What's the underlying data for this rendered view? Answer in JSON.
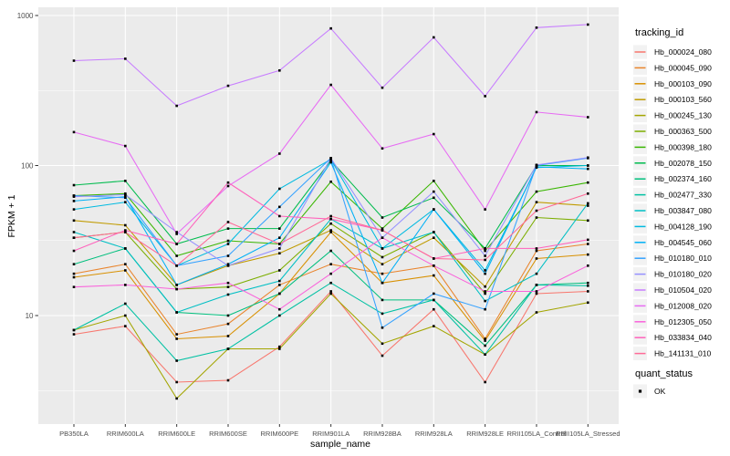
{
  "figure": {
    "bg": "#FFFFFF",
    "panel_bg": "#EBEBEB",
    "grid_color": "#FFFFFF",
    "tick_color": "#333333",
    "tick_label_color": "#4D4D4D",
    "point_color": "#000000",
    "legend_key_bg": "#F2F2F2"
  },
  "chart_data": {
    "type": "line",
    "title": "",
    "xlabel": "sample_name",
    "ylabel": "FPKM + 1",
    "y_scale": "log10",
    "y_ticks": [
      10,
      100,
      1000
    ],
    "y_minor_ticks": [
      3.1623,
      31.623,
      316.23
    ],
    "ylim": [
      1.9,
      1100
    ],
    "grid": true,
    "legend_position": "right",
    "categories": [
      "PB350LA",
      "RRIM600LA",
      "RRIM600LE",
      "RRIM600SE",
      "RRIM600PE",
      "RRIM901LA",
      "RRIM928BA",
      "RRIM928LA",
      "RRIM928LE",
      "RRII105LA_Control",
      "RRII105LA_Stressed"
    ],
    "series": [
      {
        "name": "Hb_000024_080",
        "color": "#F8766D",
        "values": [
          7.5,
          8.5,
          3.6,
          3.7,
          6.2,
          14.5,
          5.4,
          11,
          3.6,
          14,
          14.5
        ]
      },
      {
        "name": "Hb_000045_090",
        "color": "#E9842C",
        "values": [
          19,
          22,
          7.5,
          8.8,
          16,
          22,
          19,
          21.5,
          7,
          27,
          30
        ]
      },
      {
        "name": "Hb_000103_090",
        "color": "#D89000",
        "values": [
          18,
          20,
          7,
          7.3,
          14,
          36,
          16.5,
          18.5,
          6.8,
          24,
          25.5
        ]
      },
      {
        "name": "Hb_000103_560",
        "color": "#C09B00",
        "values": [
          43,
          40,
          16,
          21.5,
          26,
          37,
          22,
          33,
          15.6,
          57,
          54
        ]
      },
      {
        "name": "Hb_000245_130",
        "color": "#A3A500",
        "values": [
          8,
          10,
          2.8,
          6,
          6,
          14,
          6.5,
          8.5,
          5.5,
          10.5,
          12.2
        ]
      },
      {
        "name": "Hb_000363_500",
        "color": "#7CAE00",
        "values": [
          33,
          36,
          15,
          15.5,
          20,
          41,
          24.5,
          36,
          14,
          45,
          43
        ]
      },
      {
        "name": "Hb_000398_180",
        "color": "#39B600",
        "values": [
          63,
          65,
          25,
          31.5,
          30,
          78,
          38,
          79,
          27,
          67,
          77
        ]
      },
      {
        "name": "Hb_002078_150",
        "color": "#00BB4E",
        "values": [
          74,
          79,
          30,
          38,
          38,
          108,
          45,
          61,
          28,
          100,
          100
        ]
      },
      {
        "name": "Hb_002374_160",
        "color": "#00BF7D",
        "values": [
          22,
          28,
          10.5,
          10,
          14,
          27,
          12.7,
          12.7,
          6.3,
          16,
          16.5
        ]
      },
      {
        "name": "Hb_002477_330",
        "color": "#00C1A3",
        "values": [
          8,
          12,
          5,
          6,
          10,
          16.5,
          10.3,
          12.7,
          5.5,
          16,
          15.8
        ]
      },
      {
        "name": "Hb_003847_080",
        "color": "#00BFC4",
        "values": [
          36,
          28,
          10.5,
          13.8,
          17,
          44,
          28,
          36,
          12.5,
          19,
          56
        ]
      },
      {
        "name": "Hb_004128_190",
        "color": "#00BAE0",
        "values": [
          51,
          57,
          21.5,
          30,
          70,
          110,
          28,
          51,
          20,
          97,
          100
        ]
      },
      {
        "name": "Hb_004545_060",
        "color": "#00B0F6",
        "values": [
          58,
          62,
          16,
          22,
          33,
          105,
          16.5,
          51,
          19,
          98,
          95
        ]
      },
      {
        "name": "Hb_010180_010",
        "color": "#35A2FF",
        "values": [
          63,
          61,
          21.5,
          25,
          53,
          112,
          8.3,
          14,
          11,
          100,
          112
        ]
      },
      {
        "name": "Hb_010180_020",
        "color": "#9590FF",
        "values": [
          62,
          64,
          36,
          21.5,
          28,
          112,
          33,
          67,
          25,
          101,
          113
        ]
      },
      {
        "name": "Hb_010504_020",
        "color": "#C77CFF",
        "values": [
          500,
          515,
          250,
          340,
          430,
          820,
          330,
          715,
          290,
          830,
          870
        ]
      },
      {
        "name": "Hb_012008_020",
        "color": "#E76BF3",
        "values": [
          167,
          135,
          35,
          73,
          120,
          345,
          130,
          162,
          51,
          227,
          210
        ]
      },
      {
        "name": "Hb_012305_050",
        "color": "#FA62DB",
        "values": [
          15.5,
          16,
          15,
          16.5,
          11,
          19,
          33,
          21.5,
          14.5,
          14.5,
          21.5
        ]
      },
      {
        "name": "Hb_033834_040",
        "color": "#FF62BC",
        "values": [
          27,
          37,
          30,
          77,
          46,
          44,
          37,
          24,
          28,
          28,
          32
        ]
      },
      {
        "name": "Hb_141131_010",
        "color": "#FF6A98",
        "values": [
          33,
          36,
          21.5,
          42,
          30,
          46,
          37,
          24,
          23.5,
          50,
          65
        ]
      }
    ],
    "legend": {
      "series_title": "tracking_id",
      "shape_title": "quant_status",
      "shape_label": "OK"
    }
  }
}
